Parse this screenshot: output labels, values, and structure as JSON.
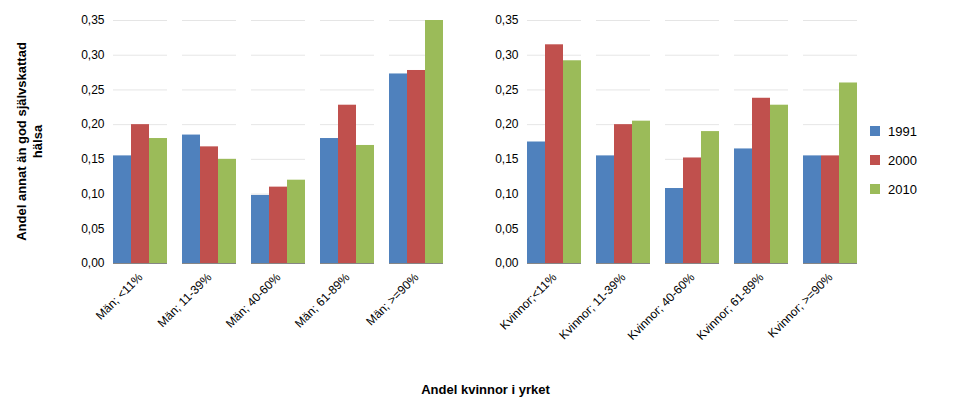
{
  "chart_data": {
    "type": "bar",
    "x_label": "Andel kvinnor i yrket",
    "y_label": "Andel annat än god självskattad hälsa",
    "categories": [
      "Män; <11%",
      "Män; 11-39%",
      "Män; 40-60%",
      "Män; 61-89%",
      "Män; >=90%",
      null,
      "Kvinnor;<11%",
      "Kvinnor; 11-39%",
      "Kvinnor; 40-60%",
      "Kvinnor; 61-89%",
      "Kvinnor; >=90%"
    ],
    "series": [
      {
        "name": "1991",
        "color": "#4F81BD",
        "values": [
          0.155,
          0.185,
          0.098,
          0.18,
          0.273,
          null,
          0.175,
          0.155,
          0.108,
          0.165,
          0.155
        ]
      },
      {
        "name": "2000",
        "color": "#C0504D",
        "values": [
          0.2,
          0.168,
          0.11,
          0.228,
          0.278,
          null,
          0.315,
          0.2,
          0.152,
          0.238,
          0.155
        ]
      },
      {
        "name": "2010",
        "color": "#9BBB59",
        "values": [
          0.18,
          0.15,
          0.12,
          0.17,
          0.35,
          null,
          0.292,
          0.205,
          0.19,
          0.228,
          0.26
        ]
      }
    ],
    "ylim": [
      0,
      0.35
    ],
    "yticks": [
      {
        "value": 0,
        "label": "0,00"
      },
      {
        "value": 0.05,
        "label": "0,05"
      },
      {
        "value": 0.1,
        "label": "0,10"
      },
      {
        "value": 0.15,
        "label": "0,15"
      },
      {
        "value": 0.2,
        "label": "0,20"
      },
      {
        "value": 0.25,
        "label": "0,25"
      },
      {
        "value": 0.3,
        "label": "0,30"
      },
      {
        "value": 0.35,
        "label": "0,35"
      }
    ],
    "grid": true,
    "legend": "right"
  }
}
